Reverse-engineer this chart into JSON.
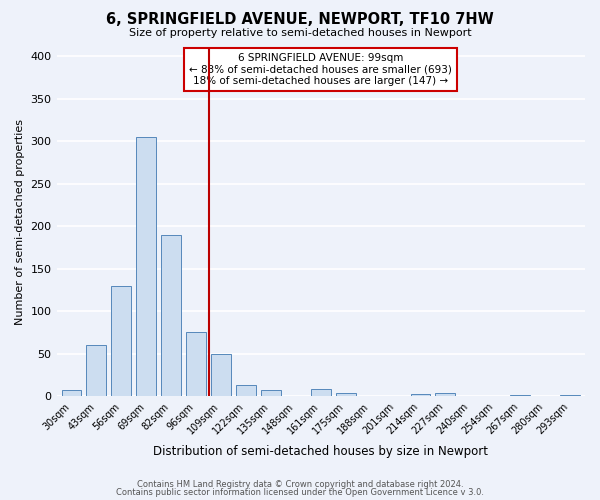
{
  "title": "6, SPRINGFIELD AVENUE, NEWPORT, TF10 7HW",
  "subtitle": "Size of property relative to semi-detached houses in Newport",
  "xlabel": "Distribution of semi-detached houses by size in Newport",
  "ylabel": "Number of semi-detached properties",
  "categories": [
    "30sqm",
    "43sqm",
    "56sqm",
    "69sqm",
    "82sqm",
    "96sqm",
    "109sqm",
    "122sqm",
    "135sqm",
    "148sqm",
    "161sqm",
    "175sqm",
    "188sqm",
    "201sqm",
    "214sqm",
    "227sqm",
    "240sqm",
    "254sqm",
    "267sqm",
    "280sqm",
    "293sqm"
  ],
  "values": [
    7,
    60,
    130,
    305,
    190,
    75,
    50,
    13,
    7,
    0,
    8,
    4,
    0,
    0,
    3,
    4,
    0,
    0,
    2,
    0,
    2
  ],
  "bar_color": "#ccddf0",
  "bar_edge_color": "#5588bb",
  "ylim": [
    0,
    410
  ],
  "yticks": [
    0,
    50,
    100,
    150,
    200,
    250,
    300,
    350,
    400
  ],
  "vline_index": 5.5,
  "annotation_title": "6 SPRINGFIELD AVENUE: 99sqm",
  "annotation_line1": "← 83% of semi-detached houses are smaller (693)",
  "annotation_line2": "18% of semi-detached houses are larger (147) →",
  "annotation_box_color": "#ffffff",
  "annotation_box_edge": "#cc0000",
  "vline_color": "#bb0000",
  "footer1": "Contains HM Land Registry data © Crown copyright and database right 2024.",
  "footer2": "Contains public sector information licensed under the Open Government Licence v 3.0.",
  "background_color": "#eef2fa",
  "grid_color": "#ffffff"
}
